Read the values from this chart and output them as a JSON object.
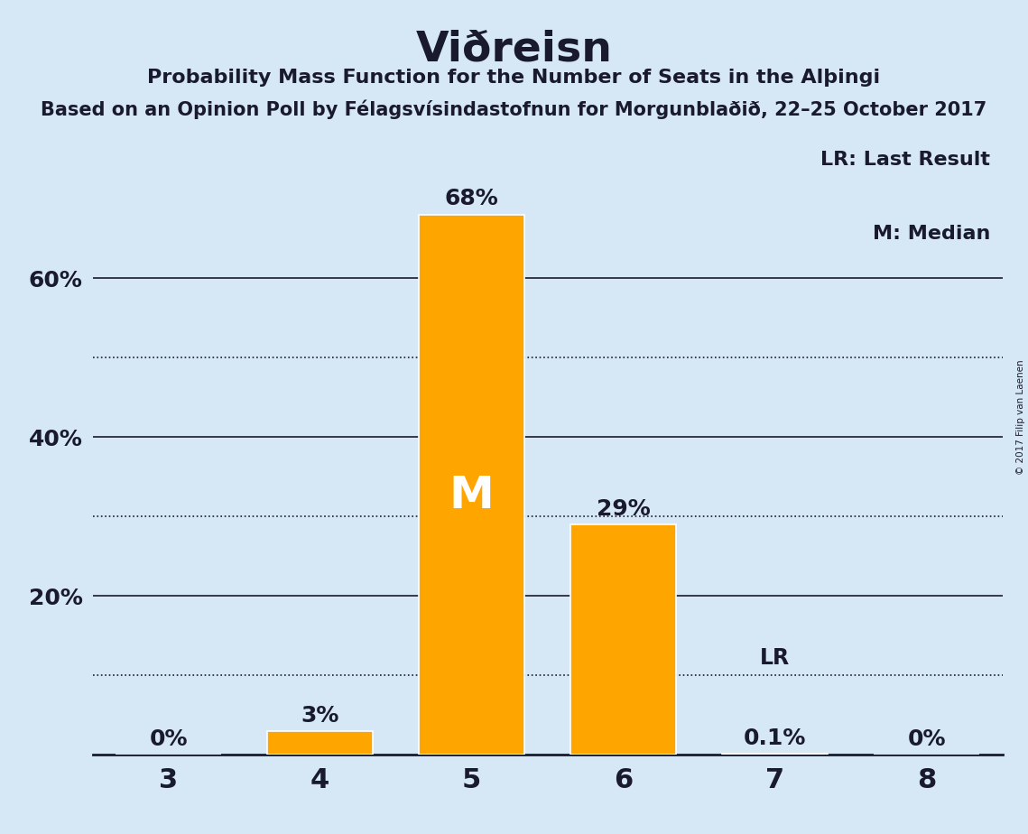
{
  "title": "Viðreisn",
  "subtitle": "Probability Mass Function for the Number of Seats in the Alþingi",
  "subtitle2": "Based on an Opinion Poll by Félagsvísindastofnun for Morgunblaðið, 22–25 October 2017",
  "copyright": "© 2017 Filip van Laenen",
  "categories": [
    3,
    4,
    5,
    6,
    7,
    8
  ],
  "values": [
    0.0,
    0.03,
    0.68,
    0.29,
    0.001,
    0.0
  ],
  "bar_labels": [
    "0%",
    "3%",
    "68%",
    "29%",
    "0.1%",
    "0%"
  ],
  "bar_color": "#FFA500",
  "background_color": "#D6E8F5",
  "text_color": "#1a1a2e",
  "lr_value": 0.1,
  "lr_seat": 7,
  "median_seat": 5,
  "solid_gridlines": [
    0.2,
    0.4,
    0.6
  ],
  "dotted_gridlines": [
    0.1,
    0.3,
    0.5
  ],
  "yticks": [
    0.2,
    0.4,
    0.6
  ],
  "ytick_labels": [
    "20%",
    "40%",
    "60%"
  ],
  "ylim": [
    0,
    0.78
  ],
  "legend_lr": "LR: Last Result",
  "legend_m": "M: Median",
  "bar_width": 0.7
}
